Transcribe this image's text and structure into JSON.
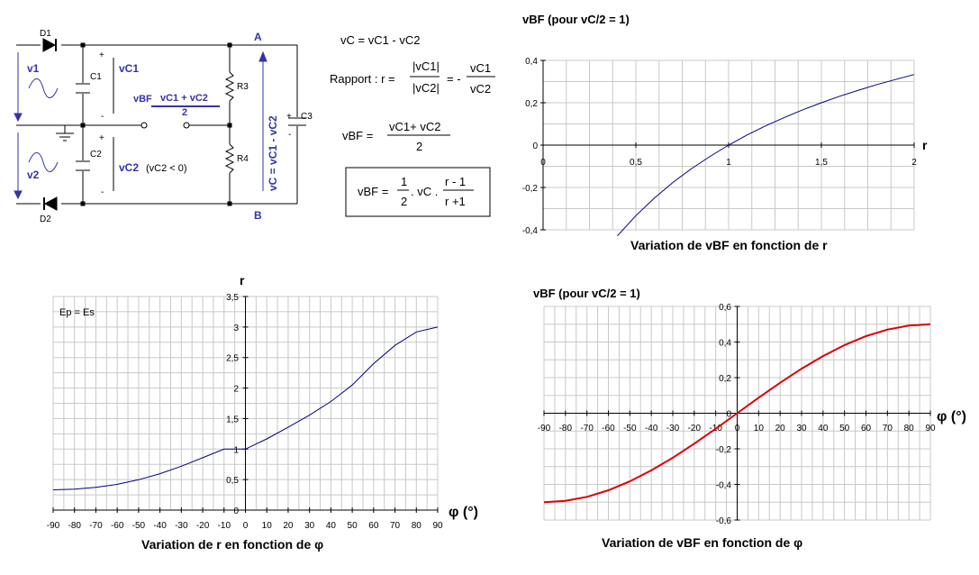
{
  "circuit": {
    "diodes": [
      "D1",
      "D2"
    ],
    "capacitors": [
      "C1",
      "C2",
      "C3"
    ],
    "resistors": [
      "R3",
      "R4"
    ],
    "nodes": [
      "A",
      "B"
    ],
    "v1": "v1",
    "v2": "v2",
    "vC1": "vC1",
    "vC2": "vC2",
    "vC2_note": "(vC2 < 0)",
    "vBF_label": "vBF",
    "vBF_num": "vC1 + vC2",
    "vBF_den": "2",
    "vC_side": "vC = vC1 - vC2",
    "plus": "+",
    "minus": "-"
  },
  "formulas": {
    "f1": "vC = vC1 - vC2",
    "rapport_label": "Rapport : r =",
    "abs_num": "|vC1|",
    "abs_den": "|vC2|",
    "eq_minus": "= -",
    "frac_num": "vC1",
    "frac_den": "vC2",
    "vbf_lhs": "vBF =",
    "vbf_num": "vC1+ vC2",
    "vbf_den": "2",
    "box_lhs": "vBF =",
    "half_num": "1",
    "half_den": "2",
    "dot_vc": ". vC .",
    "r_num": "r - 1",
    "r_den": "r +1"
  },
  "chart_data": [
    {
      "type": "line",
      "title": "vBF (pour vC/2 = 1)",
      "caption": "Variation de vBF en fonction de r",
      "xlabel": "r",
      "ylabel": "",
      "xlim": [
        0,
        2
      ],
      "ylim": [
        -0.4,
        0.4
      ],
      "x_ticks": [
        "0",
        "0,5",
        "1",
        "1,5",
        "2"
      ],
      "y_ticks": [
        "0,4",
        "0,2",
        "0",
        "-0,2",
        "-0,4"
      ],
      "grid": true,
      "series": [
        {
          "color": "#000080",
          "x": [
            0.333,
            0.4,
            0.5,
            0.6,
            0.7,
            0.8,
            0.9,
            1.0,
            1.1,
            1.2,
            1.3,
            1.4,
            1.5,
            1.6,
            1.7,
            1.8,
            1.9,
            2.0
          ],
          "y": [
            -0.5,
            -0.429,
            -0.333,
            -0.25,
            -0.176,
            -0.111,
            -0.053,
            0,
            0.048,
            0.091,
            0.13,
            0.167,
            0.2,
            0.231,
            0.259,
            0.286,
            0.31,
            0.333
          ]
        }
      ]
    },
    {
      "type": "line",
      "title": "",
      "caption": "Variation de r en fonction de φ",
      "xlabel": "φ (°)",
      "ylabel": "r",
      "annotation": "Ep = Es",
      "xlim": [
        -90,
        90
      ],
      "ylim": [
        0,
        3.5
      ],
      "x_ticks": [
        "-90",
        "-80",
        "-70",
        "-60",
        "-50",
        "-40",
        "-30",
        "-20",
        "-10",
        "0",
        "10",
        "20",
        "30",
        "40",
        "50",
        "60",
        "70",
        "80",
        "90"
      ],
      "y_ticks": [
        "3,5",
        "3",
        "2,5",
        "2",
        "1,5",
        "1",
        "0,5",
        "0"
      ],
      "grid": true,
      "series": [
        {
          "color": "#000080",
          "x": [
            -90,
            -80,
            -70,
            -60,
            -50,
            -40,
            -30,
            -20,
            -10,
            0,
            10,
            20,
            30,
            40,
            50,
            60,
            70,
            80,
            90
          ],
          "y": [
            0.333,
            0.343,
            0.372,
            0.422,
            0.497,
            0.597,
            0.719,
            0.858,
            1.0,
            1.0,
            1.166,
            1.357,
            1.556,
            1.78,
            2.05,
            2.4,
            2.7,
            2.92,
            3.0
          ]
        }
      ]
    },
    {
      "type": "line",
      "title": "vBF (pour vC/2 = 1)",
      "caption": "Variation de vBF en fonction de φ",
      "xlabel": "φ (°)",
      "ylabel": "",
      "xlim": [
        -90,
        90
      ],
      "ylim": [
        -0.6,
        0.6
      ],
      "x_ticks": [
        "-90",
        "-80",
        "-70",
        "-60",
        "-50",
        "-40",
        "-30",
        "-20",
        "-10",
        "0",
        "10",
        "20",
        "30",
        "40",
        "50",
        "60",
        "70",
        "80",
        "90"
      ],
      "y_ticks": [
        "0,6",
        "0,4",
        "0,2",
        "0",
        "-0,2",
        "-0,4",
        "-0,6"
      ],
      "grid": true,
      "series": [
        {
          "color": "#dd0000",
          "x": [
            -90,
            -80,
            -70,
            -60,
            -50,
            -40,
            -30,
            -20,
            -10,
            0,
            10,
            20,
            30,
            40,
            50,
            60,
            70,
            80,
            90
          ],
          "y": [
            -0.5,
            -0.492,
            -0.47,
            -0.433,
            -0.383,
            -0.321,
            -0.25,
            -0.171,
            -0.087,
            0,
            0.087,
            0.171,
            0.25,
            0.321,
            0.383,
            0.433,
            0.47,
            0.492,
            0.5
          ]
        }
      ]
    }
  ]
}
